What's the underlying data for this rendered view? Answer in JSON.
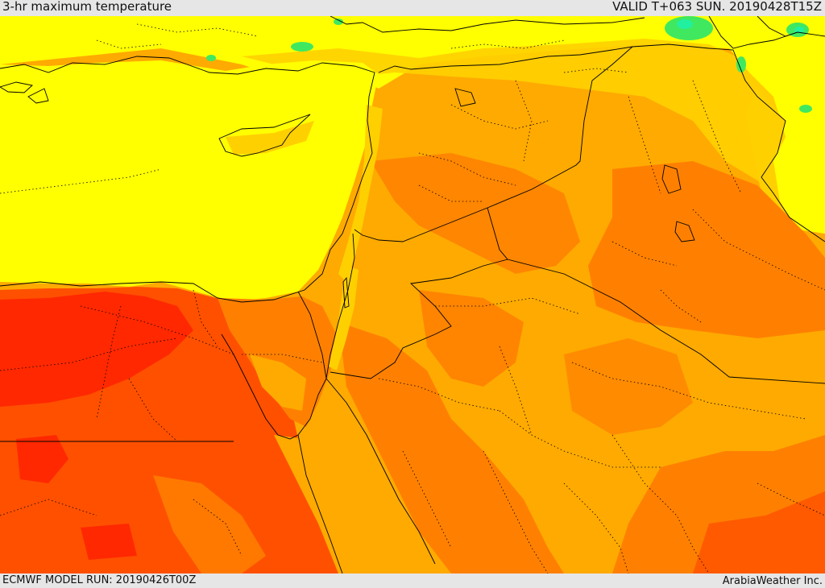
{
  "header": {
    "title": "3-hr maximum temperature",
    "valid": "VALID T+063 SUN. 20190428T15Z"
  },
  "footer": {
    "model_run": "ECMWF MODEL RUN: 20190426T00Z",
    "credit": "ArabiaWeather Inc."
  },
  "colors": {
    "yellow": "#ffff00",
    "light_orange": "#ffd000",
    "amber": "#ffaa00",
    "orange": "#ff8000",
    "red_orange": "#ff5000",
    "red": "#ff2800",
    "green": "#40e860",
    "aqua": "#20f0a0",
    "border": "#000000"
  }
}
